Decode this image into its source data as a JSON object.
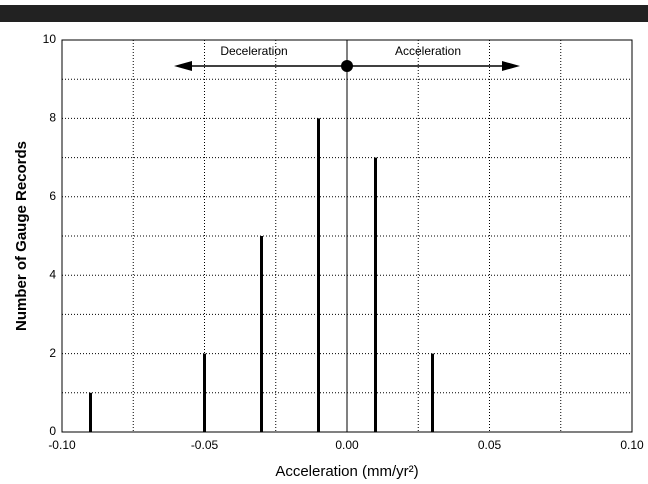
{
  "chart_data": {
    "type": "stem",
    "xlabel": "Acceleration (mm/yr²)",
    "ylabel": "Number of Gauge Records",
    "x": [
      -0.09,
      -0.05,
      -0.03,
      -0.01,
      0.01,
      0.03
    ],
    "values": [
      1,
      2,
      5,
      8,
      7,
      2
    ],
    "color": "#000000",
    "xlim": [
      -0.1,
      0.1
    ],
    "ylim": [
      0,
      10
    ],
    "xticks": [
      {
        "value": -0.1,
        "label": "-0.10"
      },
      {
        "value": -0.05,
        "label": "-0.05"
      },
      {
        "value": 0,
        "label": "0.00"
      },
      {
        "value": 0.05,
        "label": "0.05"
      },
      {
        "value": 0.1,
        "label": "0.10"
      }
    ],
    "yticks": [
      0,
      2,
      4,
      6,
      8,
      10
    ],
    "minor_xticks": [
      -0.075,
      -0.025,
      0.025,
      0.075
    ],
    "minor_yticks": [
      1,
      3,
      5,
      7,
      9
    ],
    "grid": true,
    "annotations": [
      "Deceleration",
      "Acceleration"
    ]
  }
}
